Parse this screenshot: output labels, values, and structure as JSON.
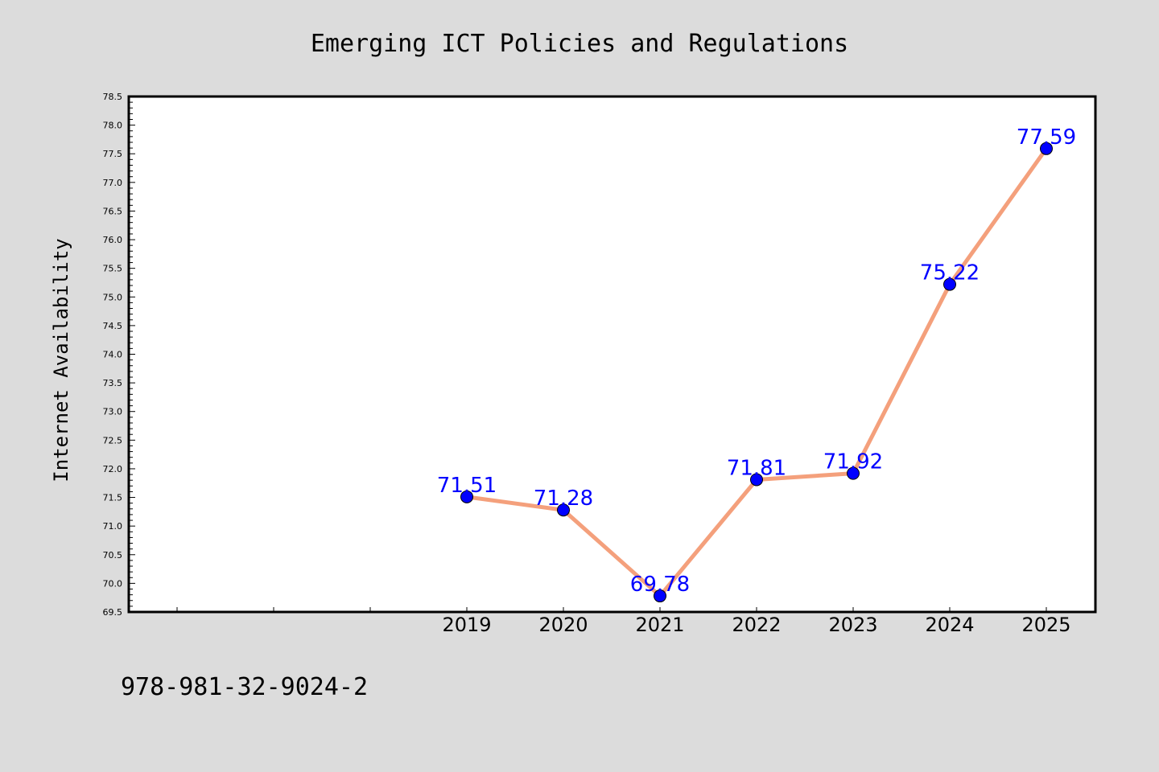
{
  "chart_data": {
    "type": "line",
    "title": "Emerging ICT Policies and Regulations",
    "xlabel": "",
    "ylabel": "Internet Availability",
    "x": [
      "2019",
      "2020",
      "2021",
      "2022",
      "2023",
      "2024",
      "2025"
    ],
    "values": [
      71.51,
      71.28,
      69.78,
      71.81,
      71.92,
      75.22,
      77.59
    ],
    "data_labels": [
      "71.51",
      "71.28",
      "69.78",
      "71.81",
      "71.92",
      "75.22",
      "77.59"
    ],
    "ylim": [
      69.5,
      78.5
    ],
    "yticks": [
      "69.5",
      "70.0",
      "70.5",
      "71.0",
      "71.5",
      "72.0",
      "72.5",
      "73.0",
      "73.5",
      "74.0",
      "74.5",
      "75.0",
      "75.5",
      "76.0",
      "76.5",
      "77.0",
      "77.5",
      "78.0",
      "78.5"
    ],
    "grid": false,
    "line_color": "#f4a07c",
    "marker_color": "#0000ff",
    "label_color": "#0000ff"
  },
  "footer": {
    "text": "978-981-32-9024-2"
  }
}
